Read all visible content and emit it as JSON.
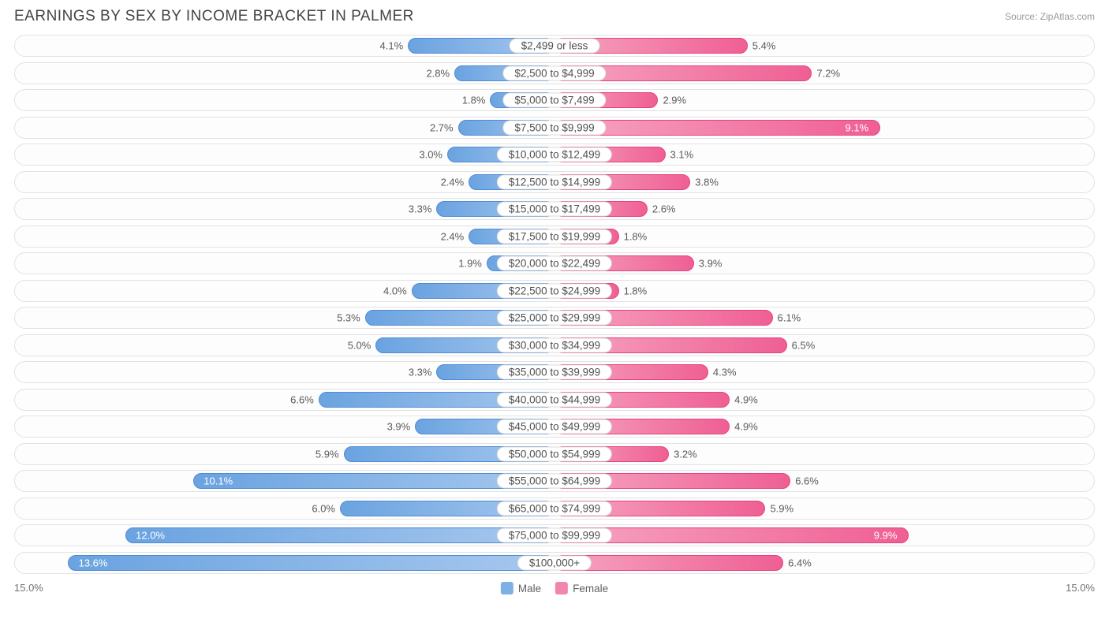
{
  "title": "EARNINGS BY SEX BY INCOME BRACKET IN PALMER",
  "source": "Source: ZipAtlas.com",
  "chart": {
    "type": "diverging-bar",
    "axis_max_pct": 15.0,
    "axis_label_left": "15.0%",
    "axis_label_right": "15.0%",
    "track_border": "#e2e2e2",
    "track_bg": "#fdfdfd",
    "label_pill_border": "#dcdcdc",
    "label_pill_bg": "#ffffff",
    "text_color": "#5a5a5a",
    "male": {
      "fill_start": "#6aa3e0",
      "fill_end": "#a7c8ee",
      "stroke": "#4f8bd6"
    },
    "female": {
      "fill_start": "#ef5f93",
      "fill_end": "#f6a5c2",
      "stroke": "#e7417f"
    },
    "legend": [
      {
        "label": "Male",
        "color": "#7eb0e6"
      },
      {
        "label": "Female",
        "color": "#f285ad"
      }
    ],
    "rows": [
      {
        "category": "$2,499 or less",
        "male": 4.1,
        "female": 5.4
      },
      {
        "category": "$2,500 to $4,999",
        "male": 2.8,
        "female": 7.2
      },
      {
        "category": "$5,000 to $7,499",
        "male": 1.8,
        "female": 2.9
      },
      {
        "category": "$7,500 to $9,999",
        "male": 2.7,
        "female": 9.1
      },
      {
        "category": "$10,000 to $12,499",
        "male": 3.0,
        "female": 3.1
      },
      {
        "category": "$12,500 to $14,999",
        "male": 2.4,
        "female": 3.8
      },
      {
        "category": "$15,000 to $17,499",
        "male": 3.3,
        "female": 2.6
      },
      {
        "category": "$17,500 to $19,999",
        "male": 2.4,
        "female": 1.8
      },
      {
        "category": "$20,000 to $22,499",
        "male": 1.9,
        "female": 3.9
      },
      {
        "category": "$22,500 to $24,999",
        "male": 4.0,
        "female": 1.8
      },
      {
        "category": "$25,000 to $29,999",
        "male": 5.3,
        "female": 6.1
      },
      {
        "category": "$30,000 to $34,999",
        "male": 5.0,
        "female": 6.5
      },
      {
        "category": "$35,000 to $39,999",
        "male": 3.3,
        "female": 4.3
      },
      {
        "category": "$40,000 to $44,999",
        "male": 6.6,
        "female": 4.9
      },
      {
        "category": "$45,000 to $49,999",
        "male": 3.9,
        "female": 4.9
      },
      {
        "category": "$50,000 to $54,999",
        "male": 5.9,
        "female": 3.2
      },
      {
        "category": "$55,000 to $64,999",
        "male": 10.1,
        "female": 6.6
      },
      {
        "category": "$65,000 to $74,999",
        "male": 6.0,
        "female": 5.9
      },
      {
        "category": "$75,000 to $99,999",
        "male": 12.0,
        "female": 9.9
      },
      {
        "category": "$100,000+",
        "male": 13.6,
        "female": 6.4
      }
    ]
  }
}
